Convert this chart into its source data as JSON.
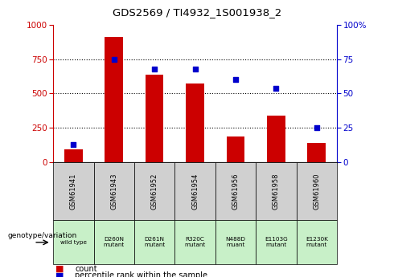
{
  "title": "GDS2569 / TI4932_1S001938_2",
  "categories": [
    "GSM61941",
    "GSM61943",
    "GSM61952",
    "GSM61954",
    "GSM61956",
    "GSM61958",
    "GSM61960"
  ],
  "genotype_labels": [
    "wild type",
    "D260N\nmutant",
    "D261N\nmutant",
    "R320C\nmutant",
    "N488D\nmuant",
    "E1103G\nmutant",
    "E1230K\nmutant"
  ],
  "counts": [
    90,
    910,
    635,
    570,
    185,
    340,
    140
  ],
  "percentile_ranks": [
    13,
    75,
    68,
    68,
    60,
    54,
    25
  ],
  "bar_color": "#cc0000",
  "dot_color": "#0000cc",
  "left_axis_color": "#cc0000",
  "right_axis_color": "#0000cc",
  "ylim_left": [
    0,
    1000
  ],
  "ylim_right": [
    0,
    100
  ],
  "yticks_left": [
    0,
    250,
    500,
    750,
    1000
  ],
  "yticks_right": [
    0,
    25,
    50,
    75,
    100
  ],
  "header_row_color": "#d0d0d0",
  "genotype_row_color": "#c8f0c8",
  "genotype_label": "genotype/variation",
  "legend_count_label": "count",
  "legend_pct_label": "percentile rank within the sample"
}
